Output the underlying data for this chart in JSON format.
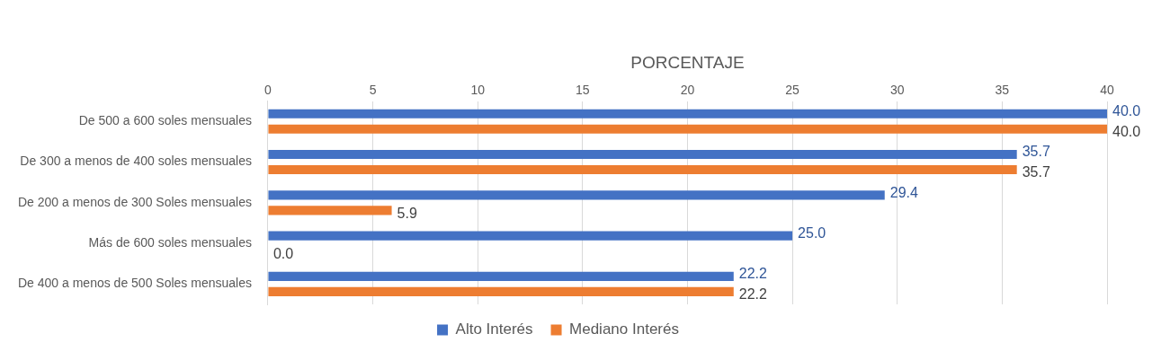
{
  "chart_data": {
    "type": "bar",
    "orientation": "horizontal",
    "xlabel": "PORCENTAJE",
    "categories": [
      "De 500 a 600 soles mensuales",
      "De 300 a menos de 400 soles mensuales",
      "De 200 a menos de 300 Soles mensuales",
      "Más de 600 soles mensuales",
      "De 400 a menos de 500 Soles mensuales"
    ],
    "series": [
      {
        "name": "Alto Interés",
        "color": "#4472c4",
        "values": [
          40.0,
          35.7,
          29.4,
          25.0,
          22.2
        ],
        "value_labels": [
          "40.0",
          "35.7",
          "29.4",
          "25.0",
          "22.2"
        ]
      },
      {
        "name": "Mediano Interés",
        "color": "#ed7d31",
        "values": [
          40.0,
          35.7,
          5.9,
          0.0,
          22.2
        ],
        "value_labels": [
          "40.0",
          "35.7",
          "5.9",
          "0.0",
          "22.2"
        ]
      }
    ],
    "xlim": [
      0,
      40
    ],
    "xticks": [
      0,
      5,
      10,
      15,
      20,
      25,
      30,
      35,
      40
    ],
    "grid": "x",
    "legend": "bottom"
  }
}
